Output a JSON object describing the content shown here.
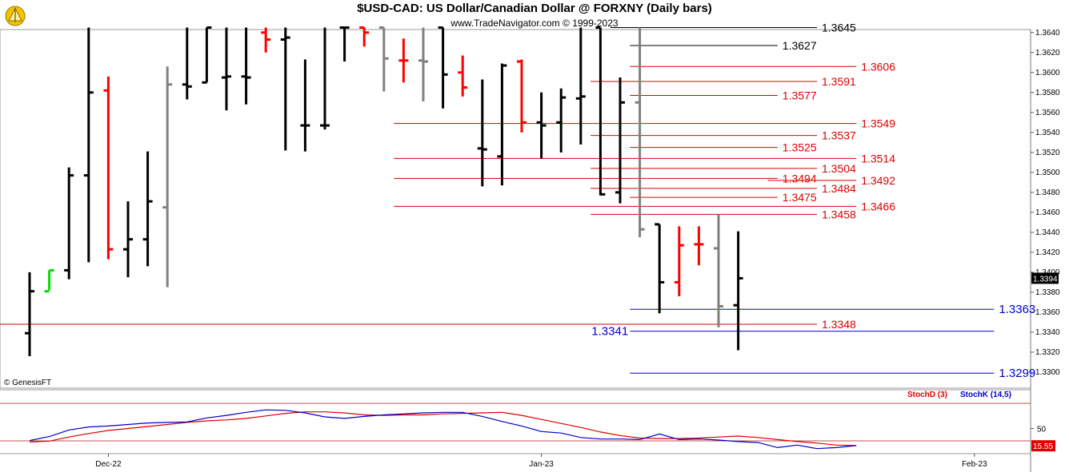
{
  "header": {
    "title": "$USD-CAD:  US Dollar/Canadian Dollar @ FORXNY  (Daily bars)",
    "subtitle": "www.TradeNavigator.com © 1999-2023",
    "copyright": "© GenesisFT"
  },
  "colors": {
    "up": "#000000",
    "down": "#ff0000",
    "neutral": "#808080",
    "green": "#00dd00",
    "red_line": "#dd0000",
    "blue_line": "#0000cc"
  },
  "chart_data": [
    {
      "type": "ohlc",
      "title": "$USD-CAD:  US Dollar/Canadian Dollar @ FORXNY  (Daily bars)",
      "y_ticks": [
        "1.3300",
        "1.3320",
        "1.3340",
        "1.3360",
        "1.3380",
        "1.3400",
        "1.3420",
        "1.3440",
        "1.3460",
        "1.3480",
        "1.3500",
        "1.3520",
        "1.3540",
        "1.3560",
        "1.3580",
        "1.3600",
        "1.3620",
        "1.3640"
      ],
      "ylim": [
        1.3284,
        1.3643
      ],
      "x_labels": [
        {
          "label": "Dec-22",
          "bar": 4
        },
        {
          "label": "Jan-23",
          "bar": 26
        },
        {
          "label": "Feb-23",
          "bar": 48
        }
      ],
      "last_price": "1.3394",
      "bars": [
        {
          "o": 1.3339,
          "h": 1.34,
          "l": 1.3316,
          "c": 1.3381,
          "col": "up"
        },
        {
          "o": 1.3381,
          "h": 1.3402,
          "l": 1.3382,
          "c": 1.3402,
          "col": "green"
        },
        {
          "o": 1.3402,
          "h": 1.3505,
          "l": 1.3393,
          "c": 1.3497,
          "col": "up"
        },
        {
          "o": 1.3497,
          "h": 1.3645,
          "l": 1.341,
          "c": 1.358,
          "col": "up"
        },
        {
          "o": 1.3582,
          "h": 1.3596,
          "l": 1.3413,
          "c": 1.3423,
          "col": "down"
        },
        {
          "o": 1.3423,
          "h": 1.3471,
          "l": 1.3395,
          "c": 1.3433,
          "col": "up"
        },
        {
          "o": 1.3433,
          "h": 1.3521,
          "l": 1.3406,
          "c": 1.3471,
          "col": "up"
        },
        {
          "o": 1.3465,
          "h": 1.3606,
          "l": 1.3385,
          "c": 1.3588,
          "col": "neutral"
        },
        {
          "o": 1.3588,
          "h": 1.3645,
          "l": 1.3573,
          "c": 1.3586,
          "col": "up"
        },
        {
          "o": 1.359,
          "h": 1.3645,
          "l": 1.359,
          "c": 1.3645,
          "col": "up"
        },
        {
          "o": 1.3595,
          "h": 1.3645,
          "l": 1.3562,
          "c": 1.3596,
          "col": "up"
        },
        {
          "o": 1.3596,
          "h": 1.3645,
          "l": 1.3568,
          "c": 1.3595,
          "col": "up"
        },
        {
          "o": 1.364,
          "h": 1.3645,
          "l": 1.362,
          "c": 1.3633,
          "col": "down"
        },
        {
          "o": 1.3633,
          "h": 1.3645,
          "l": 1.3522,
          "c": 1.3635,
          "col": "up"
        },
        {
          "o": 1.3547,
          "h": 1.3613,
          "l": 1.3521,
          "c": 1.3547,
          "col": "up"
        },
        {
          "o": 1.3547,
          "h": 1.3645,
          "l": 1.3543,
          "c": 1.3547,
          "col": "up"
        },
        {
          "o": 1.3645,
          "h": 1.3645,
          "l": 1.3611,
          "c": 1.3645,
          "col": "up"
        },
        {
          "o": 1.3645,
          "h": 1.3645,
          "l": 1.3626,
          "c": 1.364,
          "col": "down"
        },
        {
          "o": 1.3645,
          "h": 1.3645,
          "l": 1.3581,
          "c": 1.3614,
          "col": "neutral"
        },
        {
          "o": 1.3612,
          "h": 1.3634,
          "l": 1.359,
          "c": 1.3612,
          "col": "down"
        },
        {
          "o": 1.3612,
          "h": 1.3645,
          "l": 1.3571,
          "c": 1.3611,
          "col": "neutral"
        },
        {
          "o": 1.3645,
          "h": 1.3645,
          "l": 1.3564,
          "c": 1.3598,
          "col": "up"
        },
        {
          "o": 1.36,
          "h": 1.3617,
          "l": 1.3576,
          "c": 1.3585,
          "col": "down"
        },
        {
          "o": 1.3524,
          "h": 1.3593,
          "l": 1.3486,
          "c": 1.3523,
          "col": "up"
        },
        {
          "o": 1.3516,
          "h": 1.3609,
          "l": 1.3487,
          "c": 1.3607,
          "col": "up"
        },
        {
          "o": 1.3611,
          "h": 1.3613,
          "l": 1.354,
          "c": 1.355,
          "col": "down"
        },
        {
          "o": 1.355,
          "h": 1.358,
          "l": 1.3514,
          "c": 1.3547,
          "col": "up"
        },
        {
          "o": 1.355,
          "h": 1.3584,
          "l": 1.352,
          "c": 1.3575,
          "col": "up"
        },
        {
          "o": 1.3574,
          "h": 1.3645,
          "l": 1.3528,
          "c": 1.3576,
          "col": "up"
        },
        {
          "o": 1.3645,
          "h": 1.3645,
          "l": 1.3477,
          "c": 1.3478,
          "col": "up"
        },
        {
          "o": 1.348,
          "h": 1.3595,
          "l": 1.3469,
          "c": 1.357,
          "col": "up"
        },
        {
          "o": 1.357,
          "h": 1.3645,
          "l": 1.3435,
          "c": 1.3443,
          "col": "neutral"
        },
        {
          "o": 1.3448,
          "h": 1.3448,
          "l": 1.3359,
          "c": 1.339,
          "col": "up"
        },
        {
          "o": 1.339,
          "h": 1.3446,
          "l": 1.3376,
          "c": 1.3427,
          "col": "down"
        },
        {
          "o": 1.3428,
          "h": 1.3446,
          "l": 1.3407,
          "c": 1.3428,
          "col": "down"
        },
        {
          "o": 1.3424,
          "h": 1.3458,
          "l": 1.3345,
          "c": 1.3366,
          "col": "neutral"
        },
        {
          "o": 1.3367,
          "h": 1.3441,
          "l": 1.3322,
          "c": 1.3394,
          "col": "up"
        }
      ],
      "h_lines": [
        {
          "label": "1.3645",
          "color": "black",
          "value": 1.3645,
          "from_bar": 30,
          "to_bar": 40,
          "label_pos": "end"
        },
        {
          "label": "1.3627",
          "color": "black",
          "value": 1.3627,
          "from_bar": 31,
          "to_bar": 38,
          "label_pos": "end"
        },
        {
          "label": "1.3606",
          "color": "red",
          "value": 1.3606,
          "from_bar": 31,
          "to_bar": 42,
          "label_pos": "end"
        },
        {
          "label": "1.3591",
          "color": "red",
          "value": 1.3591,
          "from_bar": 29,
          "to_bar": 40,
          "label_pos": "end"
        },
        {
          "label": "1.3577",
          "color": "red",
          "value": 1.3577,
          "from_bar": 31,
          "to_bar": 38,
          "label_pos": "end"
        },
        {
          "label": "1.3549",
          "color": "red",
          "value": 1.3549,
          "from_bar": 19,
          "to_bar": 42,
          "label_pos": "end"
        },
        {
          "label": "1.3537",
          "color": "red",
          "value": 1.3537,
          "from_bar": 29,
          "to_bar": 40,
          "label_pos": "end"
        },
        {
          "label": "1.3525",
          "color": "red",
          "value": 1.3525,
          "from_bar": 31,
          "to_bar": 38,
          "label_pos": "end"
        },
        {
          "label": "1.3514",
          "color": "red",
          "value": 1.3514,
          "from_bar": 19,
          "to_bar": 42,
          "label_pos": "end"
        },
        {
          "label": "1.3504",
          "color": "red",
          "value": 1.3504,
          "from_bar": 29,
          "to_bar": 40,
          "label_pos": "end"
        },
        {
          "label": "1.3494",
          "color": "red",
          "value": 1.3494,
          "from_bar": 19,
          "to_bar": 38,
          "label_pos": "end"
        },
        {
          "label": "1.3492",
          "color": "red",
          "value": 1.3492,
          "from_bar": 38,
          "to_bar": 42,
          "label_pos": "end"
        },
        {
          "label": "1.3484",
          "color": "red",
          "value": 1.3484,
          "from_bar": 29,
          "to_bar": 40,
          "label_pos": "end"
        },
        {
          "label": "1.3475",
          "color": "red",
          "value": 1.3475,
          "from_bar": 31,
          "to_bar": 38,
          "label_pos": "end"
        },
        {
          "label": "1.3466",
          "color": "red",
          "value": 1.3466,
          "from_bar": 19,
          "to_bar": 42,
          "label_pos": "end"
        },
        {
          "label": "1.3458",
          "color": "red",
          "value": 1.3458,
          "from_bar": 29,
          "to_bar": 40,
          "label_pos": "end"
        },
        {
          "label": "1.3363",
          "color": "blue",
          "value": 1.3363,
          "from_bar": 31,
          "to_bar": 49,
          "label_pos": "end"
        },
        {
          "label": "1.3348",
          "color": "red",
          "value": 1.3348,
          "from_bar": -1,
          "to_bar": 40,
          "label_pos": "end"
        },
        {
          "label": "1.3341",
          "color": "blue",
          "value": 1.3341,
          "from_bar": 31,
          "to_bar": 49,
          "label_pos": "start"
        },
        {
          "label": "1.3299",
          "color": "blue",
          "value": 1.3299,
          "from_bar": 31,
          "to_bar": 49,
          "label_pos": "end"
        }
      ]
    },
    {
      "type": "line",
      "title": "",
      "legend": [
        {
          "name": "StochD (3)",
          "color": "#dd0000"
        },
        {
          "name": "StochK (14,5)",
          "color": "#0000cc"
        }
      ],
      "y_ticks": [
        "50"
      ],
      "ylim": [
        0,
        100
      ],
      "last_value": "15.55",
      "series": [
        {
          "name": "StochD (3)",
          "color": "#dd0000",
          "values": [
            23,
            25,
            33,
            40,
            46,
            50,
            54,
            58,
            62,
            65,
            67,
            70,
            75,
            80,
            83,
            83,
            81,
            77,
            76,
            77,
            77,
            79,
            80,
            81,
            82,
            76,
            68,
            60,
            52,
            43,
            36,
            31,
            30,
            30,
            31,
            33,
            35,
            32,
            28,
            24,
            21,
            17,
            16
          ]
        },
        {
          "name": "StochK (14,5)",
          "color": "#0000cc",
          "values": [
            26,
            34,
            47,
            53,
            55,
            58,
            61,
            62,
            63,
            71,
            76,
            82,
            87,
            86,
            81,
            73,
            70,
            74,
            77,
            79,
            81,
            82,
            82,
            74,
            64,
            55,
            44,
            41,
            32,
            29,
            29,
            28,
            39,
            28,
            29,
            27,
            24,
            22,
            12,
            17,
            10,
            12,
            16
          ]
        }
      ]
    }
  ]
}
